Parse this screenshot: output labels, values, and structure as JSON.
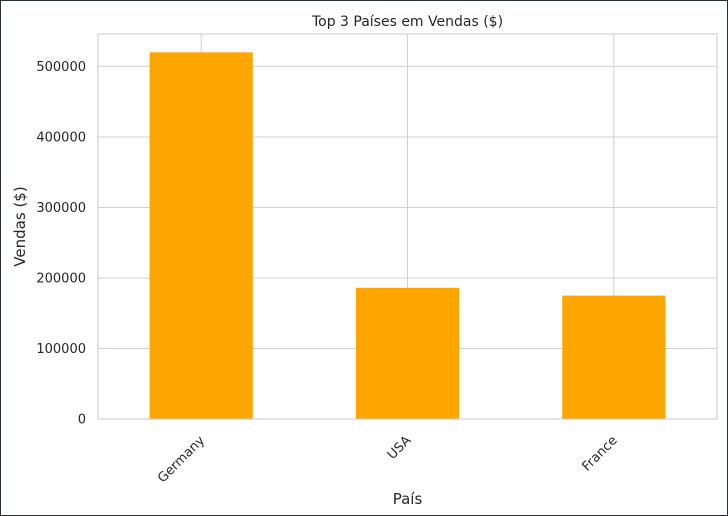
{
  "chart_data": {
    "type": "bar",
    "title": "Top 3 Países em Vendas ($)",
    "xlabel": "País",
    "ylabel": "Vendas ($)",
    "categories": [
      "Germany",
      "USA",
      "France"
    ],
    "values": [
      520000,
      186000,
      175000
    ],
    "ylim": [
      0,
      546000
    ],
    "yticks": [
      0,
      100000,
      200000,
      300000,
      400000,
      500000
    ],
    "ytick_labels": [
      "0",
      "100000",
      "200000",
      "300000",
      "400000",
      "500000"
    ],
    "bar_color": "#ffa500",
    "grid": true,
    "legend": "none"
  }
}
